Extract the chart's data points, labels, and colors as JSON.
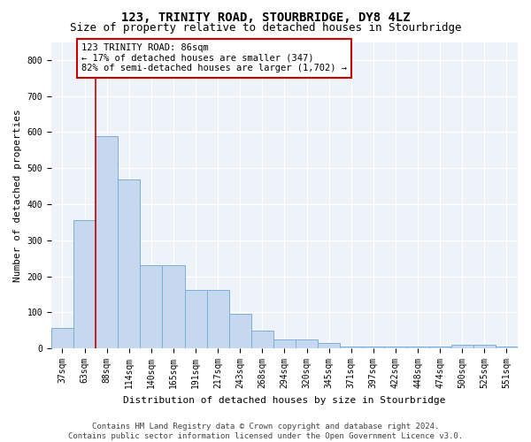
{
  "title": "123, TRINITY ROAD, STOURBRIDGE, DY8 4LZ",
  "subtitle": "Size of property relative to detached houses in Stourbridge",
  "xlabel": "Distribution of detached houses by size in Stourbridge",
  "ylabel": "Number of detached properties",
  "bar_color": "#c5d8f0",
  "bar_edge_color": "#7bafd4",
  "categories": [
    "37sqm",
    "63sqm",
    "88sqm",
    "114sqm",
    "140sqm",
    "165sqm",
    "191sqm",
    "217sqm",
    "243sqm",
    "268sqm",
    "294sqm",
    "320sqm",
    "345sqm",
    "371sqm",
    "397sqm",
    "422sqm",
    "448sqm",
    "474sqm",
    "500sqm",
    "525sqm",
    "551sqm"
  ],
  "values": [
    57,
    355,
    590,
    468,
    232,
    232,
    162,
    162,
    95,
    50,
    25,
    25,
    15,
    5,
    5,
    5,
    5,
    5,
    10,
    10,
    5
  ],
  "ylim": [
    0,
    850
  ],
  "yticks": [
    0,
    100,
    200,
    300,
    400,
    500,
    600,
    700,
    800
  ],
  "vline_x": 2.0,
  "property_label": "123 TRINITY ROAD: 86sqm",
  "annotation_line1": "← 17% of detached houses are smaller (347)",
  "annotation_line2": "82% of semi-detached houses are larger (1,702) →",
  "vline_color": "#cc0000",
  "box_edge_color": "#cc0000",
  "footer1": "Contains HM Land Registry data © Crown copyright and database right 2024.",
  "footer2": "Contains public sector information licensed under the Open Government Licence v3.0.",
  "bg_color": "#eef2f9",
  "grid_color": "#ffffff",
  "title_fontsize": 10,
  "subtitle_fontsize": 9,
  "label_fontsize": 8,
  "tick_fontsize": 7,
  "annotation_fontsize": 7.5,
  "footer_fontsize": 6.5
}
